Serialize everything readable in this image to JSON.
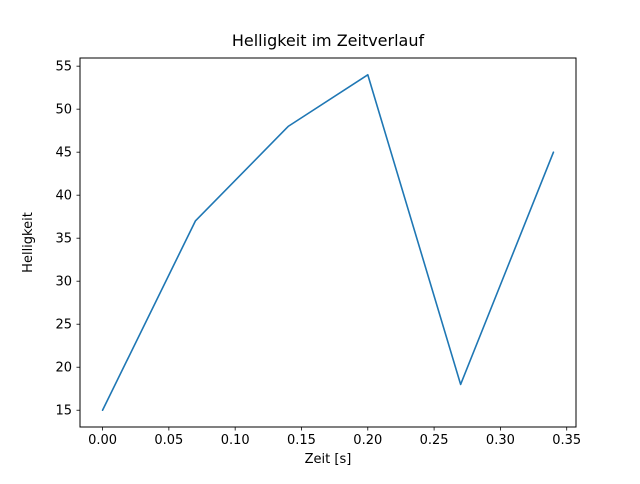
{
  "chart_data": {
    "type": "line",
    "title": "Helligkeit im Zeitverlauf",
    "xlabel": "Zeit [s]",
    "ylabel": "Helligkeit",
    "x": [
      0.0,
      0.07,
      0.14,
      0.2,
      0.27,
      0.34
    ],
    "y": [
      15,
      37,
      48,
      54,
      18,
      45
    ],
    "xlim": [
      -0.017,
      0.357
    ],
    "ylim": [
      13.05,
      55.95
    ],
    "xticks": [
      0.0,
      0.05,
      0.1,
      0.15,
      0.2,
      0.25,
      0.3,
      0.35
    ],
    "xtick_labels": [
      "0.00",
      "0.05",
      "0.10",
      "0.15",
      "0.20",
      "0.25",
      "0.30",
      "0.35"
    ],
    "yticks": [
      15,
      20,
      25,
      30,
      35,
      40,
      45,
      50,
      55
    ],
    "ytick_labels": [
      "15",
      "20",
      "25",
      "30",
      "35",
      "40",
      "45",
      "50",
      "55"
    ],
    "line_color": "#1f77b4",
    "axis_color": "#000000",
    "background": "#ffffff",
    "grid": false
  }
}
